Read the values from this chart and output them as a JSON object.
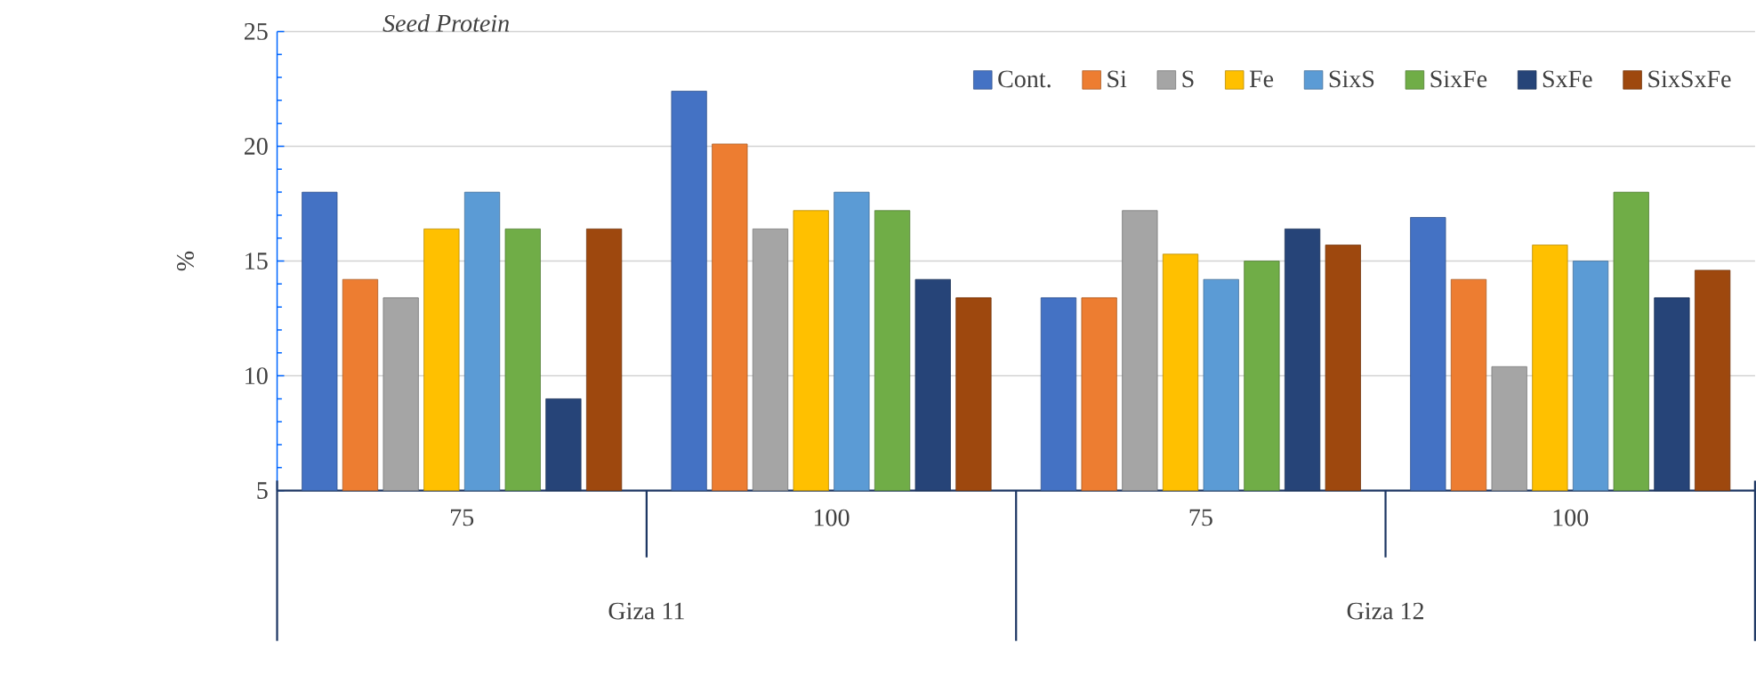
{
  "chart_data": {
    "type": "bar",
    "title": "Seed Protein",
    "ylabel": "%",
    "categories": [
      "75",
      "100",
      "75",
      "100"
    ],
    "annotations": [
      "Giza 11",
      "Giza 12"
    ],
    "series": [
      {
        "name": "Cont.",
        "color": "#4472c4",
        "values": [
          18.0,
          22.4,
          13.4,
          16.9
        ]
      },
      {
        "name": "Si",
        "color": "#ed7d31",
        "values": [
          14.2,
          20.1,
          13.4,
          14.2
        ]
      },
      {
        "name": "S",
        "color": "#a5a5a5",
        "values": [
          13.4,
          16.4,
          17.2,
          10.4
        ]
      },
      {
        "name": "Fe",
        "color": "#ffc000",
        "values": [
          16.4,
          17.2,
          15.3,
          15.7
        ]
      },
      {
        "name": "SixS",
        "color": "#5b9bd5",
        "values": [
          18.0,
          18.0,
          14.2,
          15.0
        ]
      },
      {
        "name": "SixFe",
        "color": "#70ad47",
        "values": [
          16.4,
          17.2,
          15.0,
          18.0
        ]
      },
      {
        "name": "SxFe",
        "color": "#264478",
        "values": [
          9.0,
          14.2,
          16.4,
          13.4
        ]
      },
      {
        "name": "SixSxFe",
        "color": "#9e480e",
        "values": [
          16.4,
          13.4,
          15.7,
          14.6
        ]
      }
    ],
    "ylim": [
      5,
      25
    ],
    "yticks": [
      5,
      10,
      15,
      20,
      25
    ],
    "grid": "y",
    "legend": "top right"
  }
}
